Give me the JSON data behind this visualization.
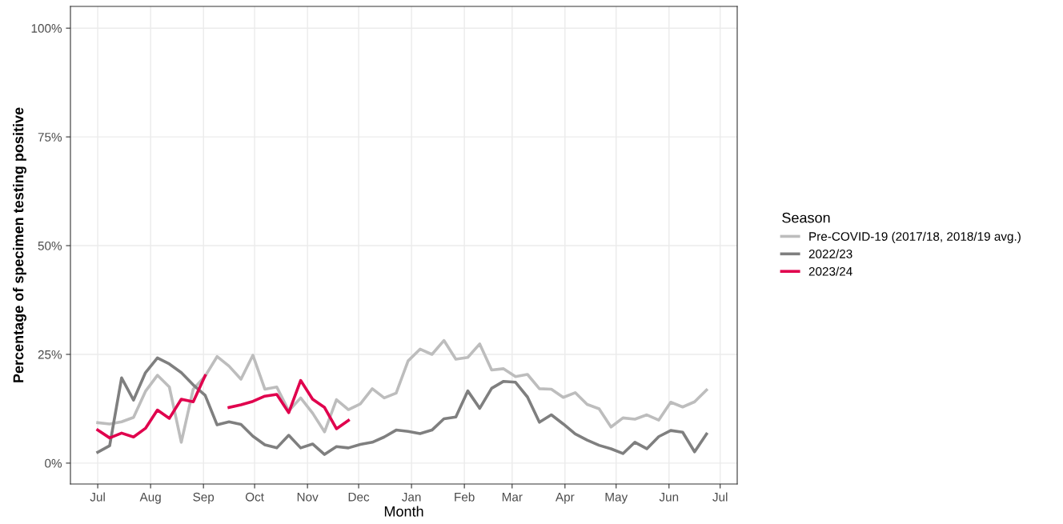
{
  "chart_data": {
    "type": "line",
    "xlabel": "Month",
    "ylabel": "Percentage of specimen testing positive",
    "legend_title": "Season",
    "legend": "right",
    "grid": true,
    "line_style": "solid",
    "marker": "none",
    "x": [
      "2022-07-01",
      "2022-07-08",
      "2022-07-15",
      "2022-07-22",
      "2022-07-29",
      "2022-08-05",
      "2022-08-12",
      "2022-08-19",
      "2022-08-26",
      "2022-09-02",
      "2022-09-09",
      "2022-09-16",
      "2022-09-23",
      "2022-09-30",
      "2022-10-07",
      "2022-10-14",
      "2022-10-21",
      "2022-10-28",
      "2022-11-04",
      "2022-11-11",
      "2022-11-18",
      "2022-11-25",
      "2022-12-02",
      "2022-12-09",
      "2022-12-16",
      "2022-12-23",
      "2022-12-30",
      "2023-01-06",
      "2023-01-13",
      "2023-01-20",
      "2023-01-27",
      "2023-02-03",
      "2023-02-10",
      "2023-02-17",
      "2023-02-24",
      "2023-03-03",
      "2023-03-10",
      "2023-03-17",
      "2023-03-24",
      "2023-03-31",
      "2023-04-07",
      "2023-04-14",
      "2023-04-21",
      "2023-04-28",
      "2023-05-05",
      "2023-05-12",
      "2023-05-19",
      "2023-05-26",
      "2023-06-02",
      "2023-06-09",
      "2023-06-16",
      "2023-06-23"
    ],
    "xlim": [
      "2022-06-15",
      "2023-07-11"
    ],
    "ylim": [
      -4.8,
      105
    ],
    "xticks": [
      {
        "value": "2022-07-01",
        "label": "Jul"
      },
      {
        "value": "2022-08-01",
        "label": "Aug"
      },
      {
        "value": "2022-09-01",
        "label": "Sep"
      },
      {
        "value": "2022-10-01",
        "label": "Oct"
      },
      {
        "value": "2022-11-01",
        "label": "Nov"
      },
      {
        "value": "2022-12-01",
        "label": "Dec"
      },
      {
        "value": "2023-01-01",
        "label": "Jan"
      },
      {
        "value": "2023-02-01",
        "label": "Feb"
      },
      {
        "value": "2023-03-01",
        "label": "Mar"
      },
      {
        "value": "2023-04-01",
        "label": "Apr"
      },
      {
        "value": "2023-05-01",
        "label": "May"
      },
      {
        "value": "2023-06-01",
        "label": "Jun"
      },
      {
        "value": "2023-07-01",
        "label": "Jul"
      }
    ],
    "yticks": [
      {
        "value": 0,
        "label": "0%"
      },
      {
        "value": 25,
        "label": "25%"
      },
      {
        "value": 50,
        "label": "50%"
      },
      {
        "value": 75,
        "label": "75%"
      },
      {
        "value": 100,
        "label": "100%"
      }
    ],
    "series": [
      {
        "name": "Pre-COVID-19 (2017/18, 2018/19 avg.)",
        "color": "#bdbdbd",
        "values": [
          9.3,
          9,
          9.5,
          10.5,
          16.5,
          20.2,
          17.5,
          4.8,
          17,
          20,
          24.5,
          22.3,
          19.3,
          24.8,
          17,
          17.5,
          12,
          15,
          11.5,
          7.2,
          14.6,
          12.3,
          13.6,
          17.1,
          15,
          16.1,
          23.5,
          26.2,
          25,
          28.2,
          23.9,
          24.3,
          27.4,
          21.4,
          21.7,
          19.9,
          20.4,
          17.1,
          17,
          15.1,
          16.2,
          13.5,
          12.5,
          8.3,
          10.4,
          10.1,
          11.1,
          9.9,
          14,
          12.9,
          14.1,
          16.8
        ]
      },
      {
        "name": "2022/23",
        "color": "#7f7f7f",
        "values": [
          2.5,
          4,
          19.6,
          14.5,
          20.8,
          24.2,
          22.8,
          20.8,
          18,
          15.6,
          8.8,
          9.5,
          8.9,
          6.2,
          4.2,
          3.5,
          6.4,
          3.5,
          4.4,
          2,
          3.8,
          3.5,
          4.3,
          4.8,
          6,
          7.6,
          7.3,
          6.8,
          7.6,
          10.2,
          10.6,
          16.6,
          12.6,
          17.2,
          18.8,
          18.6,
          15.2,
          9.4,
          11.1,
          9,
          6.7,
          5.3,
          4.1,
          3.3,
          2.2,
          4.8,
          3.3,
          6.1,
          7.5,
          7.1,
          2.6,
          6.7
        ]
      },
      {
        "name": "2023/24",
        "color": "#e0004d",
        "x": [
          "2022-07-01",
          "2022-07-08",
          "2022-07-15",
          "2022-07-22",
          "2022-07-29",
          "2022-08-05",
          "2022-08-12",
          "2022-08-19",
          "2022-08-26",
          "2022-09-02",
          "2022-09-09",
          "2022-09-16",
          "2022-09-23",
          "2022-09-30",
          "2022-10-07",
          "2022-10-14",
          "2022-10-21",
          "2022-10-28",
          "2022-11-04",
          "2022-11-11",
          "2022-11-18",
          "2022-11-25"
        ],
        "values": [
          7.6,
          5.8,
          6.9,
          6,
          8,
          12.2,
          10.3,
          14.7,
          14.1,
          20.1,
          null,
          12.8,
          13.4,
          14.2,
          15.4,
          15.8,
          11.6,
          19,
          14.7,
          12.8,
          7.9,
          9.8
        ]
      }
    ]
  }
}
